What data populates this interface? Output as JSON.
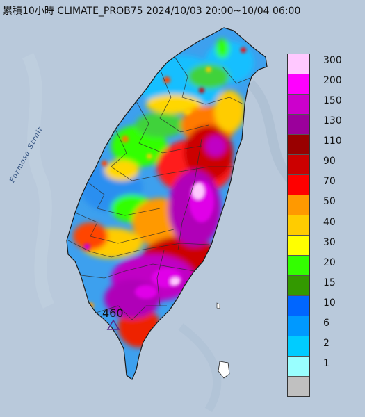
{
  "title": "累積10小時 CLIMATE_PROB75 2024/10/03 20:00~10/04 06:00",
  "sea_label": "Formosa Strait",
  "max_value_label": "460",
  "legend": {
    "labels": [
      "300",
      "200",
      "150",
      "130",
      "110",
      "90",
      "70",
      "50",
      "40",
      "30",
      "20",
      "15",
      "10",
      "6",
      "2",
      "1"
    ],
    "swatches": [
      {
        "label": "300",
        "color": "#ffc8ff"
      },
      {
        "label": "200",
        "color": "#ff00ff"
      },
      {
        "label": "150",
        "color": "#cc00cc"
      },
      {
        "label": "130",
        "color": "#9b009b"
      },
      {
        "label": "110",
        "color": "#990000"
      },
      {
        "label": "90",
        "color": "#cc0000"
      },
      {
        "label": "70",
        "color": "#ff0000"
      },
      {
        "label": "50",
        "color": "#ff9900"
      },
      {
        "label": "40",
        "color": "#ffcc00"
      },
      {
        "label": "30",
        "color": "#ffff00"
      },
      {
        "label": "20",
        "color": "#33ff00"
      },
      {
        "label": "15",
        "color": "#339900"
      },
      {
        "label": "10",
        "color": "#0066ff"
      },
      {
        "label": "6",
        "color": "#0099ff"
      },
      {
        "label": "2",
        "color": "#00ccff"
      },
      {
        "label": "1",
        "color": "#99ffff"
      },
      {
        "label": "",
        "color": "#c0c0c0"
      }
    ]
  },
  "colors": {
    "sea": "#b9c9db",
    "island_base": "#3da0ee"
  }
}
